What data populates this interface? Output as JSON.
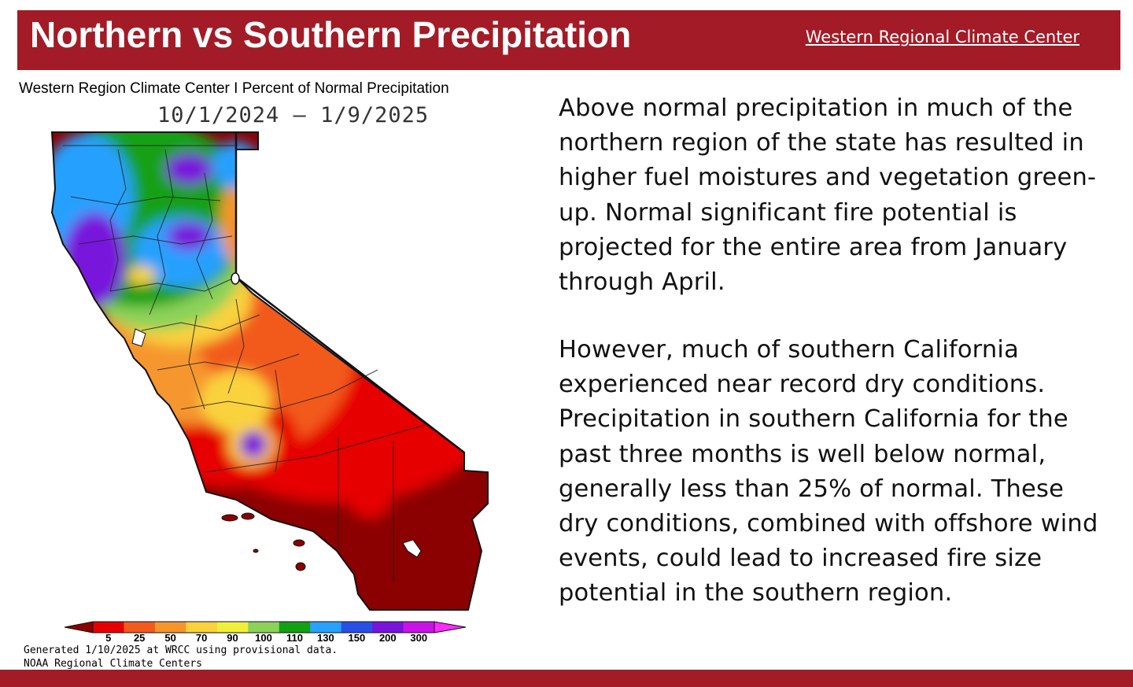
{
  "header": {
    "title": "Northern vs Southern Precipitation",
    "source_link": "Western Regional Climate Center",
    "bar_color": "#a21b26"
  },
  "map": {
    "heading": "Western Region Climate Center I Percent of Normal Precipitation",
    "date_range": "10/1/2024 – 1/9/2025",
    "legend": {
      "ticks": [
        "5",
        "25",
        "50",
        "70",
        "90",
        "100",
        "110",
        "130",
        "150",
        "200",
        "300"
      ],
      "colors": [
        "#8b0000",
        "#e60000",
        "#f25a1e",
        "#f5962d",
        "#fad23c",
        "#f0f03c",
        "#8cd25a",
        "#14a014",
        "#28a0ff",
        "#2850e6",
        "#7814dc",
        "#c814e6",
        "#ff28ff"
      ]
    },
    "note_generated": "Generated 1/10/2025 at WRCC using provisional data.",
    "note_org": "NOAA Regional Climate Centers"
  },
  "body": {
    "paragraph_1": "Above normal precipitation in much of the northern region of the state has resulted in higher fuel moistures and vegetation green-up. Normal significant fire potential is projected for the entire area from January through April.",
    "paragraph_2": "However, much of southern California experienced near record dry conditions. Precipitation in southern California for the past three months is well below normal, generally less than 25% of normal. These dry conditions, combined with offshore wind events, could lead to increased fire size potential in the southern region."
  }
}
